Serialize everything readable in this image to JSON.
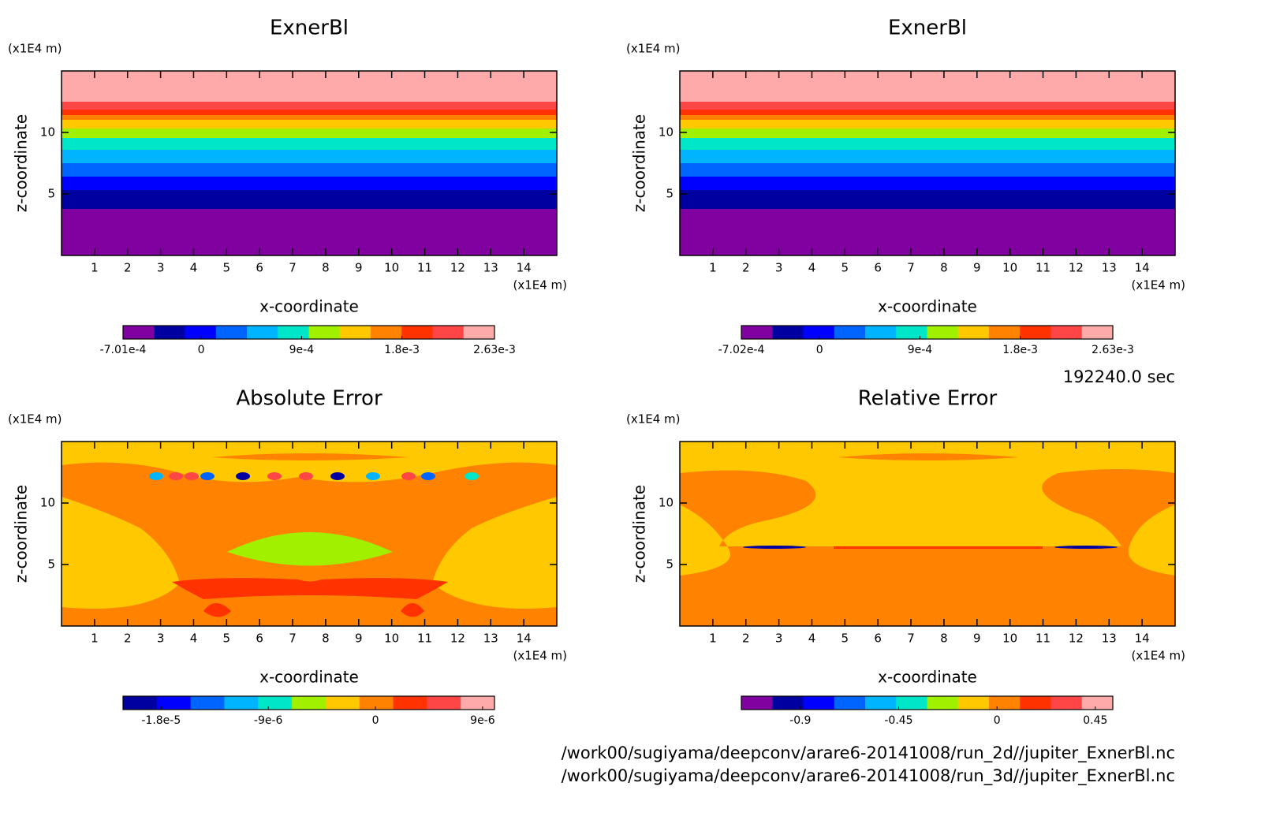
{
  "chart_data": [
    {
      "type": "contour",
      "title": "ExnerBl",
      "xlabel": "x-coordinate",
      "ylabel": "z-coordinate",
      "xunit": "(x1E4 m)",
      "yunit": "(x1E4 m)",
      "xlim": [
        0,
        15
      ],
      "xticks": [
        1,
        2,
        3,
        4,
        5,
        6,
        7,
        8,
        9,
        10,
        11,
        12,
        13,
        14
      ],
      "ylim": [
        0,
        15
      ],
      "yticks": [
        5,
        10
      ],
      "colors": [
        "#8000a0",
        "#0000a0",
        "#0000ff",
        "#0064ff",
        "#00b4ff",
        "#00e6c8",
        "#a0f000",
        "#ffc800",
        "#ff8200",
        "#ff3200",
        "#ff4646",
        "#ffaaaa"
      ],
      "clim": [
        -0.000701,
        0.00263
      ],
      "cticks": [
        {
          "value": -0.000701,
          "label": "-7.01e-4"
        },
        0,
        {
          "value": 0.0009,
          "label": "9e-4"
        },
        {
          "value": 0.0018,
          "label": "1.8e-3"
        },
        {
          "value": 0.00263,
          "label": "2.63e-3"
        }
      ]
    },
    {
      "type": "contour",
      "title": "ExnerBl",
      "xlabel": "x-coordinate",
      "ylabel": "z-coordinate",
      "xunit": "(x1E4 m)",
      "yunit": "(x1E4 m)",
      "xlim": [
        0,
        15
      ],
      "xticks": [
        1,
        2,
        3,
        4,
        5,
        6,
        7,
        8,
        9,
        10,
        11,
        12,
        13,
        14
      ],
      "ylim": [
        0,
        15
      ],
      "yticks": [
        5,
        10
      ],
      "colors": [
        "#8000a0",
        "#0000a0",
        "#0000ff",
        "#0064ff",
        "#00b4ff",
        "#00e6c8",
        "#a0f000",
        "#ffc800",
        "#ff8200",
        "#ff3200",
        "#ff4646",
        "#ffaaaa"
      ],
      "clim": [
        -0.000702,
        0.00263
      ],
      "cticks": [
        {
          "value": -0.000702,
          "label": "-7.02e-4"
        },
        0,
        {
          "value": 0.0009,
          "label": "9e-4"
        },
        {
          "value": 0.0018,
          "label": "1.8e-3"
        },
        {
          "value": 0.00263,
          "label": "2.63e-3"
        }
      ]
    },
    {
      "type": "contour",
      "title": "Absolute Error",
      "xlabel": "x-coordinate",
      "ylabel": "z-coordinate",
      "xunit": "(x1E4 m)",
      "yunit": "(x1E4 m)",
      "xlim": [
        0,
        15
      ],
      "xticks": [
        1,
        2,
        3,
        4,
        5,
        6,
        7,
        8,
        9,
        10,
        11,
        12,
        13,
        14
      ],
      "ylim": [
        0,
        15
      ],
      "yticks": [
        5,
        10
      ],
      "colors": [
        "#0000a0",
        "#0000ff",
        "#0064ff",
        "#00b4ff",
        "#00e6c8",
        "#a0f000",
        "#ffc800",
        "#ff8200",
        "#ff3200",
        "#ff4646",
        "#ffaaaa"
      ],
      "clim": [
        -2.12e-05,
        1e-05
      ],
      "cticks": [
        {
          "value": -1.8e-05,
          "label": "-1.8e-5"
        },
        {
          "value": -9e-06,
          "label": "-9e-6"
        },
        0,
        {
          "value": 9e-06,
          "label": "9e-6"
        }
      ]
    },
    {
      "type": "contour",
      "title": "Relative Error",
      "xlabel": "x-coordinate",
      "ylabel": "z-coordinate",
      "xunit": "(x1E4 m)",
      "yunit": "(x1E4 m)",
      "xlim": [
        0,
        15
      ],
      "xticks": [
        1,
        2,
        3,
        4,
        5,
        6,
        7,
        8,
        9,
        10,
        11,
        12,
        13,
        14
      ],
      "ylim": [
        0,
        15
      ],
      "yticks": [
        5,
        10
      ],
      "colors": [
        "#8000a0",
        "#0000a0",
        "#0000ff",
        "#0064ff",
        "#00b4ff",
        "#00e6c8",
        "#a0f000",
        "#ffc800",
        "#ff8200",
        "#ff3200",
        "#ff4646",
        "#ffaaaa"
      ],
      "clim": [
        -1.17,
        0.53
      ],
      "cticks": [
        -0.9,
        -0.45,
        0,
        0.45
      ]
    }
  ],
  "time": "192240.0 sec",
  "files": [
    "/work00/sugiyama/deepconv/arare6-20141008/run_2d//jupiter_ExnerBl.nc",
    "/work00/sugiyama/deepconv/arare6-20141008/run_3d//jupiter_ExnerBl.nc"
  ]
}
